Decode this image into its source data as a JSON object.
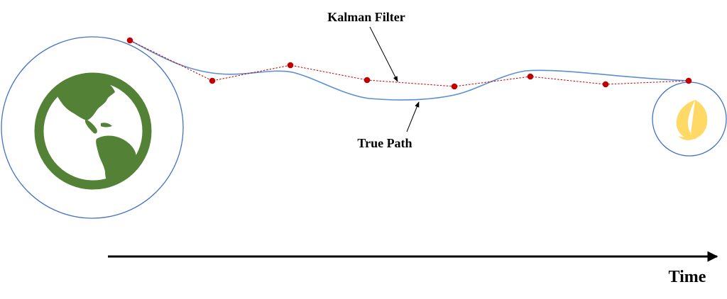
{
  "labels": {
    "kalman_filter": "Kalman Filter",
    "true_path": "True Path",
    "time_axis": "Time"
  },
  "icons": {
    "origin": "earth-icon",
    "destination": "crescent-moon-icon"
  },
  "colors": {
    "true_path": "#5b8fd1",
    "kalman_filter": "#c00000",
    "earth": "#538135",
    "moon": "#ffd966",
    "body_outline": "#4472c4",
    "axis": "#000000"
  }
}
